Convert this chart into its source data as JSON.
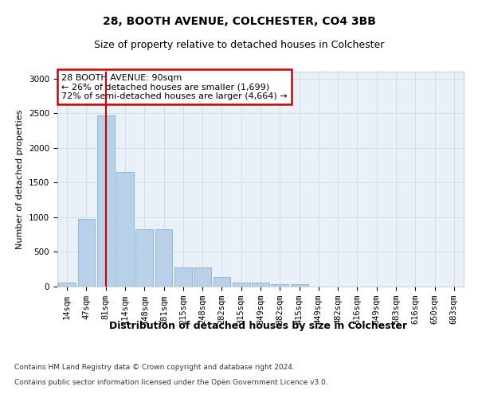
{
  "title1": "28, BOOTH AVENUE, COLCHESTER, CO4 3BB",
  "title2": "Size of property relative to detached houses in Colchester",
  "xlabel": "Distribution of detached houses by size in Colchester",
  "ylabel": "Number of detached properties",
  "footnote1": "Contains HM Land Registry data © Crown copyright and database right 2024.",
  "footnote2": "Contains public sector information licensed under the Open Government Licence v3.0.",
  "categories": [
    "14sqm",
    "47sqm",
    "81sqm",
    "114sqm",
    "148sqm",
    "181sqm",
    "215sqm",
    "248sqm",
    "282sqm",
    "315sqm",
    "349sqm",
    "382sqm",
    "415sqm",
    "449sqm",
    "482sqm",
    "516sqm",
    "549sqm",
    "583sqm",
    "616sqm",
    "650sqm",
    "683sqm"
  ],
  "values": [
    60,
    980,
    2470,
    1650,
    830,
    830,
    280,
    280,
    140,
    60,
    60,
    40,
    40,
    0,
    0,
    0,
    0,
    0,
    0,
    0,
    0
  ],
  "bar_color": "#b8d0e8",
  "bar_edge_color": "#7aaac8",
  "grid_color": "#d4dce8",
  "annotation_text": "28 BOOTH AVENUE: 90sqm\n← 26% of detached houses are smaller (1,699)\n72% of semi-detached houses are larger (4,664) →",
  "annotation_box_color": "#ffffff",
  "annotation_border_color": "#cc0000",
  "vline_x": 2.0,
  "vline_color": "#cc0000",
  "ylim": [
    0,
    3100
  ],
  "yticks": [
    0,
    500,
    1000,
    1500,
    2000,
    2500,
    3000
  ],
  "bg_color": "#eaf0f8",
  "title1_fontsize": 10,
  "title2_fontsize": 9,
  "xlabel_fontsize": 9,
  "ylabel_fontsize": 8,
  "tick_fontsize": 7.5,
  "annot_fontsize": 8,
  "footnote_fontsize": 6.5
}
